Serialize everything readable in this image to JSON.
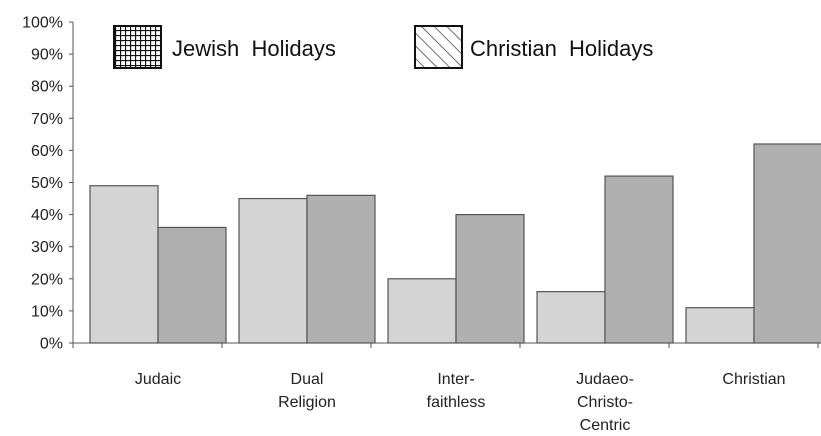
{
  "chart_data": {
    "type": "bar",
    "title": "",
    "xlabel": "",
    "ylabel": "",
    "categories": [
      [
        "Judaic"
      ],
      [
        "Dual",
        "Religion"
      ],
      [
        "Inter-",
        "faithless"
      ],
      [
        "Judaeo-",
        "Christo-",
        "Centric"
      ],
      [
        "Christian"
      ]
    ],
    "series": [
      {
        "name": "Jewish  Holidays",
        "values": [
          49,
          45,
          20,
          16,
          11
        ],
        "color": "#d4d4d4",
        "legend_pattern": "grid"
      },
      {
        "name": "Christian  Holidays",
        "values": [
          36,
          46,
          40,
          52,
          62
        ],
        "color": "#b0b0b0",
        "legend_pattern": "diagonal"
      }
    ],
    "yticks": [
      "0%",
      "10%",
      "20%",
      "30%",
      "40%",
      "50%",
      "60%",
      "70%",
      "80%",
      "90%",
      "100%"
    ],
    "ylim": [
      0,
      100
    ],
    "grid": false,
    "legend_position": "top"
  }
}
